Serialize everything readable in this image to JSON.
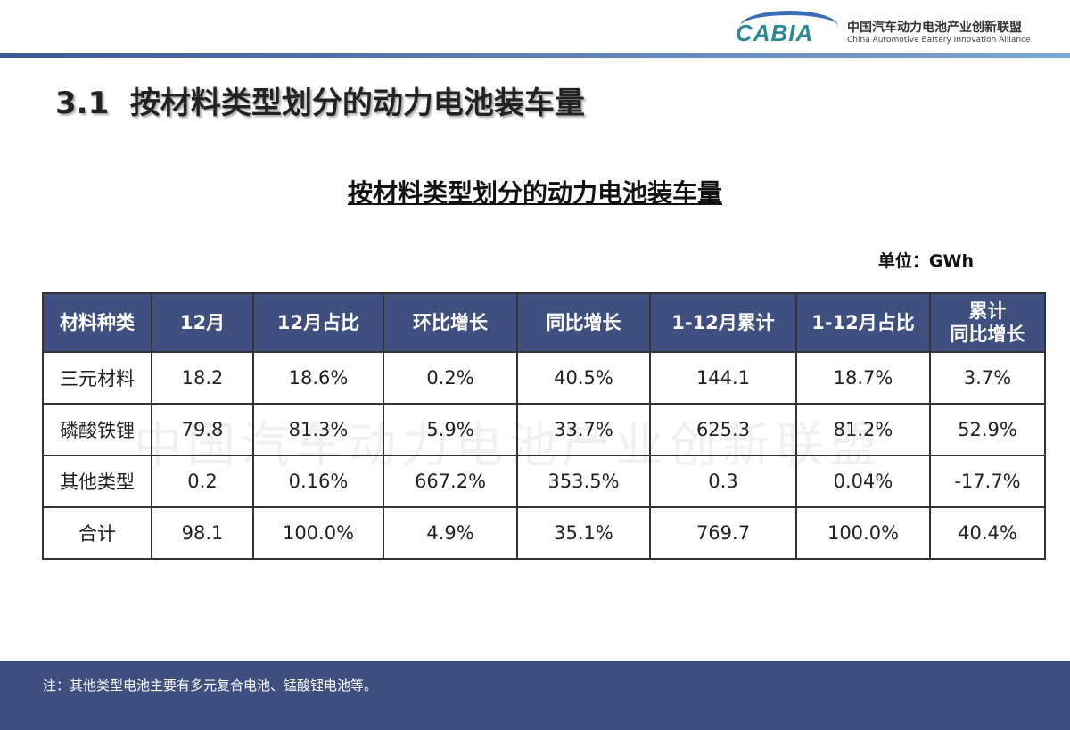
{
  "logo": {
    "mark": "CABIA",
    "cn": "中国汽车动力电池产业创新联盟",
    "en": "China Automotive Battery Innovation Alliance"
  },
  "heading": "3.1  按材料类型划分的动力电池装车量",
  "table_title": "按材料类型划分的动力电池装车量",
  "unit": "单位：GWh",
  "watermark": "中国汽车动力电池产业创新联盟",
  "colors": {
    "header_bg": "#3f4f7f",
    "footer_bg": "#3f4f80"
  },
  "table": {
    "headers": [
      "材料种类",
      "12月",
      "12月占比",
      "环比增长",
      "同比增长",
      "1-12月累计",
      "1-12月占比",
      "累计\n同比增长"
    ],
    "rows": [
      [
        "三元材料",
        "18.2",
        "18.6%",
        "0.2%",
        "40.5%",
        "144.1",
        "18.7%",
        "3.7%"
      ],
      [
        "磷酸铁锂",
        "79.8",
        "81.3%",
        "5.9%",
        "33.7%",
        "625.3",
        "81.2%",
        "52.9%"
      ],
      [
        "其他类型",
        "0.2",
        "0.16%",
        "667.2%",
        "353.5%",
        "0.3",
        "0.04%",
        "-17.7%"
      ],
      [
        "合计",
        "98.1",
        "100.0%",
        "4.9%",
        "35.1%",
        "769.7",
        "100.0%",
        "40.4%"
      ]
    ]
  },
  "footer": {
    "note": "注：其他类型电池主要有多元复合电池、锰酸锂电池等。"
  }
}
